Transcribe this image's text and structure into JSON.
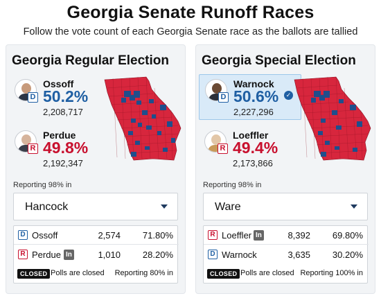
{
  "header": {
    "title": "Georgia Senate Runoff Races",
    "subtitle": "Follow the vote count of each Georgia Senate race as the ballots are tallied"
  },
  "colors": {
    "dem": "#1f5fa3",
    "rep": "#c8102e"
  },
  "races": [
    {
      "title": "Georgia Regular Election",
      "candidates": [
        {
          "name": "Ossoff",
          "party": "D",
          "pct": "50.2%",
          "votes": "2,208,717",
          "winner": false
        },
        {
          "name": "Perdue",
          "party": "R",
          "pct": "49.8%",
          "votes": "2,192,347",
          "winner": false
        }
      ],
      "reporting": "Reporting 98% in",
      "county": {
        "selected": "Hancock"
      },
      "results": [
        {
          "party": "D",
          "name": "Ossoff",
          "incumbent": false,
          "votes": "2,574",
          "share": "71.80%"
        },
        {
          "party": "R",
          "name": "Perdue",
          "incumbent": true,
          "incumbent_label": "In",
          "votes": "1,010",
          "share": "28.20%"
        }
      ],
      "closed_badge": "CLOSED",
      "closed_text": "Polls are closed",
      "county_reporting": "Reporting 80% in"
    },
    {
      "title": "Georgia Special Election",
      "candidates": [
        {
          "name": "Warnock",
          "party": "D",
          "pct": "50.6%",
          "votes": "2,227,296",
          "winner": true
        },
        {
          "name": "Loeffler",
          "party": "R",
          "pct": "49.4%",
          "votes": "2,173,866",
          "winner": false
        }
      ],
      "reporting": "Reporting 98% in",
      "county": {
        "selected": "Ware"
      },
      "results": [
        {
          "party": "R",
          "name": "Loeffler",
          "incumbent": true,
          "incumbent_label": "In",
          "votes": "8,392",
          "share": "69.80%"
        },
        {
          "party": "D",
          "name": "Warnock",
          "incumbent": false,
          "votes": "3,635",
          "share": "30.20%"
        }
      ],
      "closed_badge": "CLOSED",
      "closed_text": "Polls are closed",
      "county_reporting": "Reporting 100% in"
    }
  ]
}
